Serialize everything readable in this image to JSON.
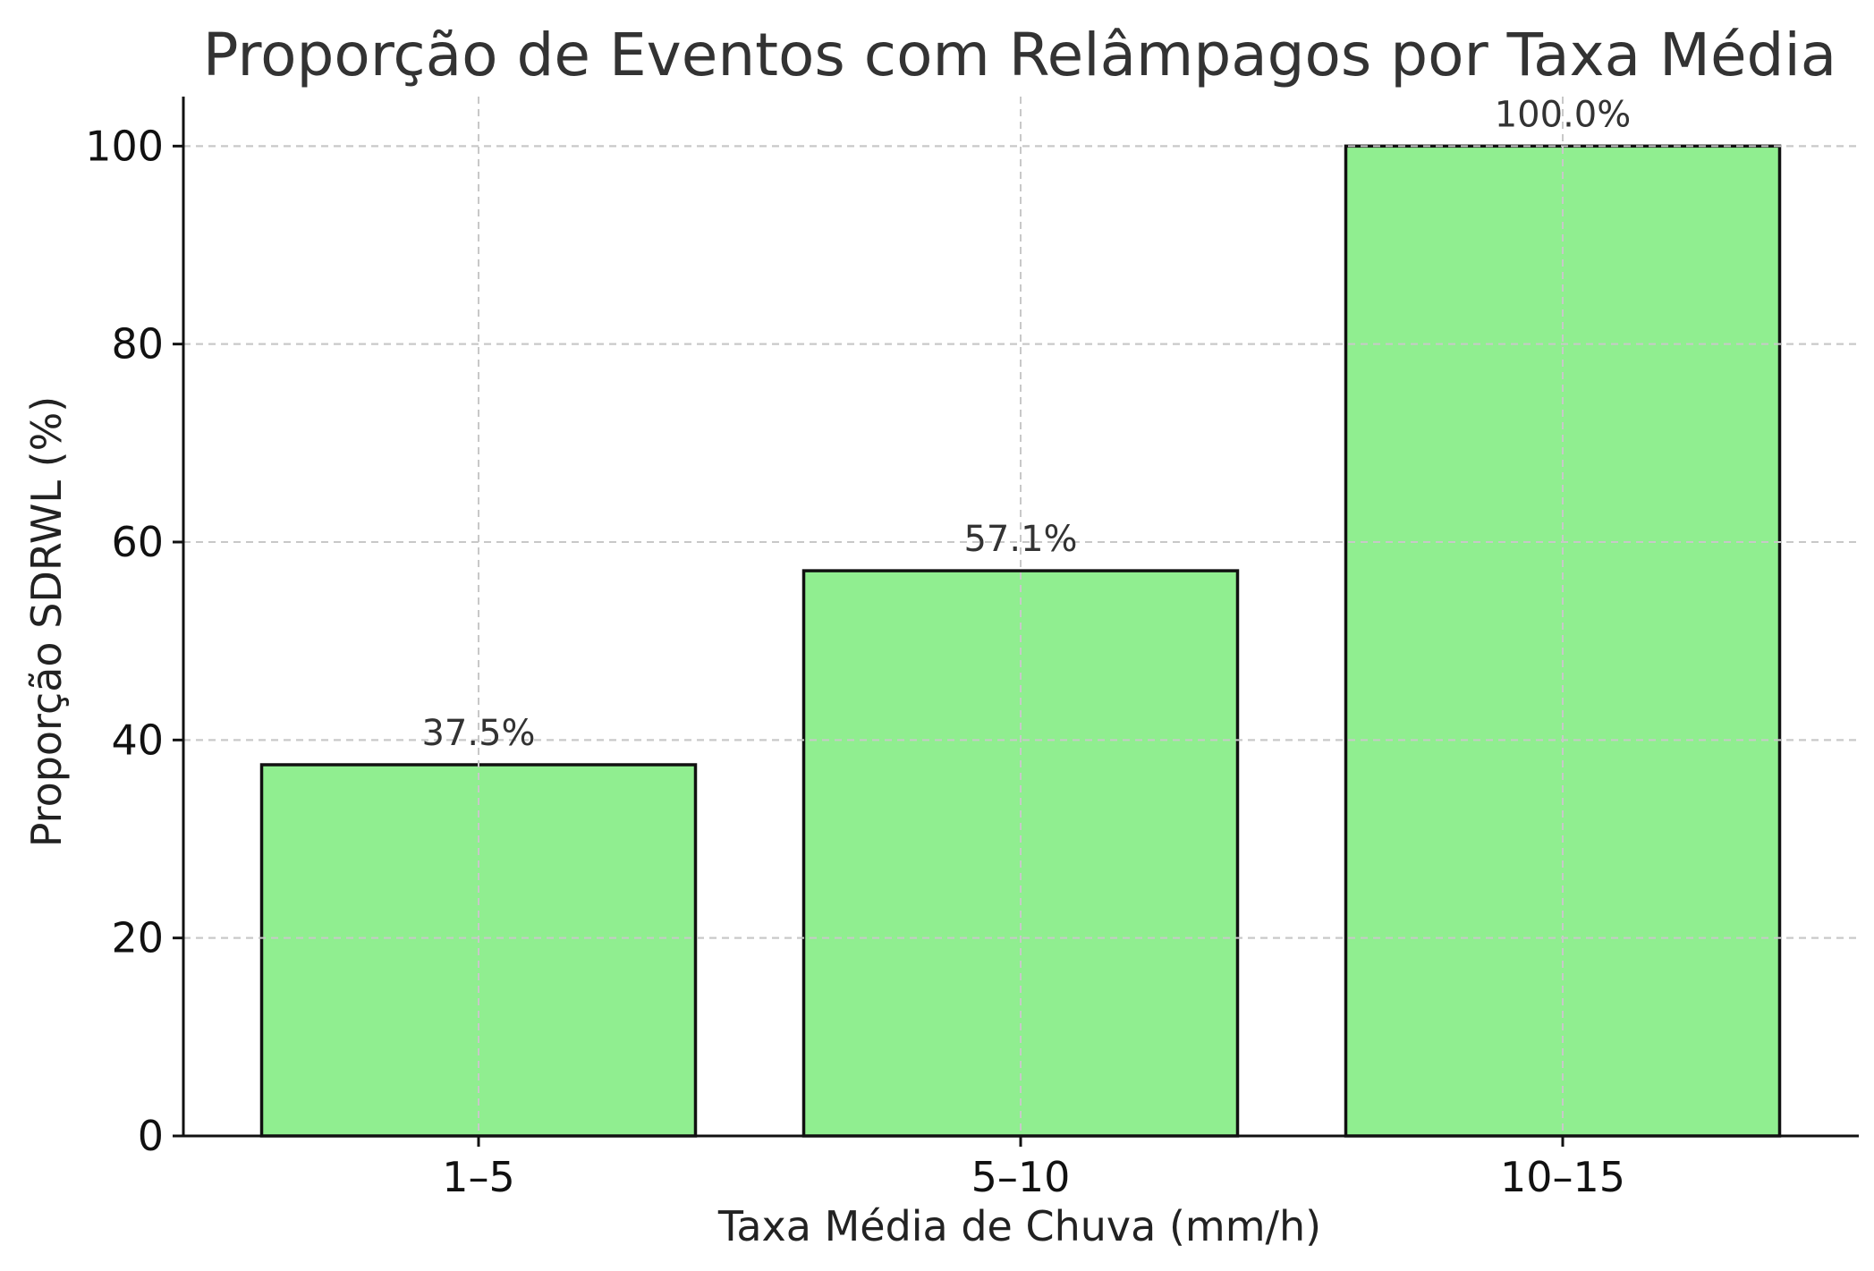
{
  "chart_data": {
    "type": "bar",
    "title": "Proporção de Eventos com Relâmpagos por Taxa Média",
    "xlabel": "Taxa Média de Chuva (mm/h)",
    "ylabel": "Proporção SDRWL (%)",
    "categories": [
      "1–5",
      "5–10",
      "10–15"
    ],
    "values": [
      37.5,
      57.1,
      100.0
    ],
    "data_labels": [
      "37.5%",
      "57.1%",
      "100.0%"
    ],
    "yticks": [
      0,
      20,
      40,
      60,
      80,
      100
    ],
    "ylim": [
      0,
      105
    ],
    "grid": true,
    "bar_color": "#90ee90",
    "edge_color": "#111111"
  }
}
